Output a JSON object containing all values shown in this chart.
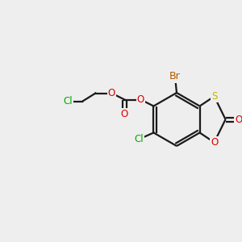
{
  "bg_color": "#eeeeee",
  "bond_color": "#1a1a1a",
  "bond_width": 1.6,
  "atom_colors": {
    "Br": "#b05800",
    "Cl": "#00aa00",
    "O": "#dd0000",
    "S": "#bbbb00",
    "C": "#1a1a1a"
  },
  "font_size": 8.5,
  "figsize": [
    3.0,
    3.0
  ],
  "dpi": 100,
  "xlim": [
    0,
    300
  ],
  "ylim": [
    0,
    300
  ]
}
